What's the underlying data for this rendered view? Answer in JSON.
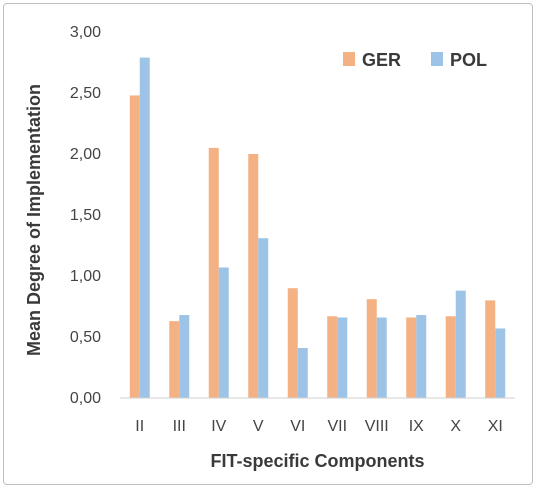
{
  "chart_data": {
    "type": "bar",
    "xlabel": "FIT-specific Components",
    "ylabel": "Mean Degree of Implementation",
    "ylim": [
      0,
      3
    ],
    "yticks": [
      "0,00",
      "0,50",
      "1,00",
      "1,50",
      "2,00",
      "2,50",
      "3,00"
    ],
    "ytick_values": [
      0,
      0.5,
      1,
      1.5,
      2,
      2.5,
      3
    ],
    "grid": false,
    "legend_position": "top-right",
    "categories": [
      "II",
      "III",
      "IV",
      "V",
      "VI",
      "VII",
      "VIII",
      "IX",
      "X",
      "XI"
    ],
    "series": [
      {
        "name": "GER",
        "color": "#f4b183",
        "values": [
          2.48,
          0.63,
          2.05,
          2.0,
          0.9,
          0.67,
          0.81,
          0.66,
          0.67,
          0.8
        ]
      },
      {
        "name": "POL",
        "color": "#9dc3e6",
        "values": [
          2.79,
          0.68,
          1.07,
          1.31,
          0.41,
          0.66,
          0.66,
          0.68,
          0.88,
          0.57
        ]
      }
    ]
  }
}
